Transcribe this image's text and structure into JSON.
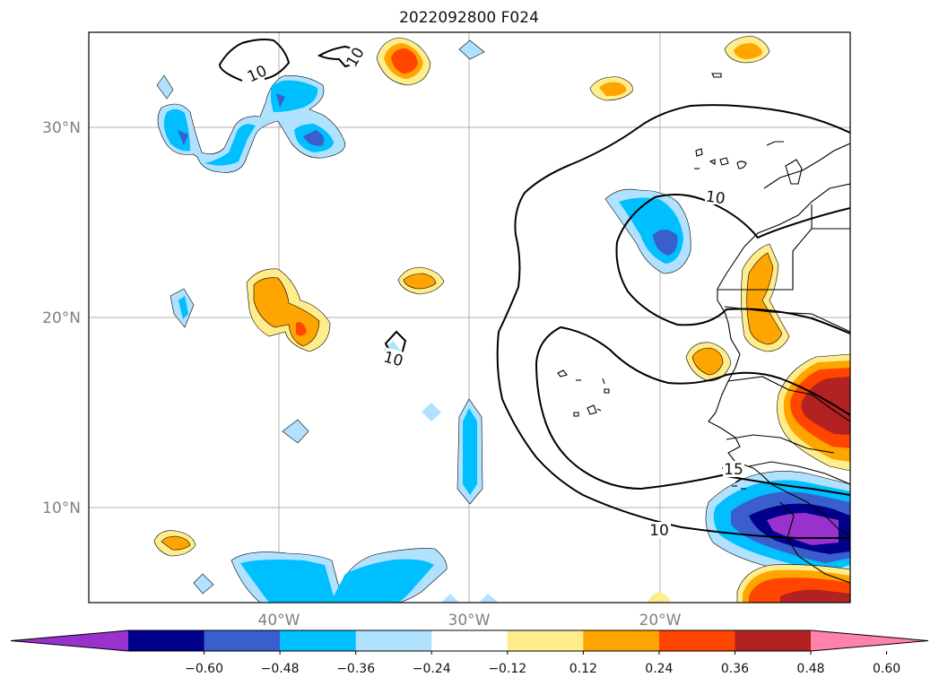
{
  "title": "2022092800 F024",
  "map": {
    "lon_ticks": [
      "40°W",
      "30°W",
      "20°W"
    ],
    "lat_ticks": [
      "30°N",
      "20°N",
      "10°N"
    ],
    "gridlines": true,
    "contour_labels": [
      "10",
      "10",
      "10",
      "10",
      "10",
      "15"
    ]
  },
  "colorbar": {
    "ticks": [
      "−0.60",
      "−0.48",
      "−0.36",
      "−0.24",
      "−0.12",
      "0.12",
      "0.24",
      "0.36",
      "0.48",
      "0.60"
    ],
    "extend": "both",
    "orientation": "horizontal",
    "colors": [
      "#9932cc",
      "#00008b",
      "#3a5fcd",
      "#00bfff",
      "#b0e2ff",
      "#ffffff",
      "#ffec8b",
      "#ffa500",
      "#ff4500",
      "#b22222",
      "#ff82ab"
    ]
  }
}
